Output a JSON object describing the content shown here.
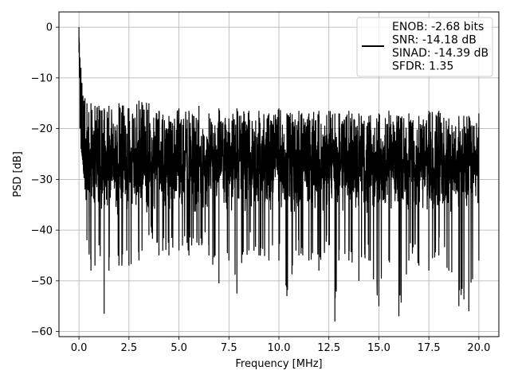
{
  "chart_data": {
    "type": "line",
    "xlabel": "Frequency [MHz]",
    "ylabel": "PSD [dB]",
    "xlim": [
      -1.0,
      21.0
    ],
    "ylim": [
      -61.0,
      3.0
    ],
    "xticks": [
      0.0,
      2.5,
      5.0,
      7.5,
      10.0,
      12.5,
      15.0,
      17.5,
      20.0
    ],
    "xtick_labels": [
      "0.0",
      "2.5",
      "5.0",
      "7.5",
      "10.0",
      "12.5",
      "15.0",
      "17.5",
      "20.0"
    ],
    "yticks": [
      0,
      -10,
      -20,
      -30,
      -40,
      -50,
      -60
    ],
    "ytick_labels": [
      "0",
      "−10",
      "−20",
      "−30",
      "−40",
      "−50",
      "−60"
    ],
    "grid": true,
    "legend_position": "top-right",
    "legend_entries": [
      "ENOB: -2.68 bits",
      "SNR: -14.18 dB",
      "SINAD: -14.39 dB",
      "SFDR: 1.35"
    ],
    "series": [
      {
        "color": "#000000",
        "x": [
          0.0,
          0.02,
          0.05,
          0.1,
          0.15,
          0.2,
          0.3,
          0.4,
          0.6,
          0.8,
          1.0,
          1.26,
          1.5,
          2.0,
          2.5,
          3.0,
          3.5,
          4.0,
          4.5,
          5.0,
          5.5,
          6.0,
          6.5,
          7.0,
          7.5,
          7.9,
          8.5,
          9.0,
          9.5,
          10.0,
          10.4,
          11.0,
          11.5,
          12.0,
          12.5,
          12.8,
          13.0,
          13.5,
          14.0,
          14.5,
          15.0,
          15.5,
          16.0,
          16.5,
          17.0,
          17.5,
          18.0,
          18.5,
          19.0,
          19.5,
          20.0
        ],
        "upper": [
          0.0,
          -3.0,
          -6.0,
          -8.0,
          -11.0,
          -13.5,
          -14.0,
          -15.0,
          -15.0,
          -15.5,
          -15.5,
          -16.0,
          -15.5,
          -15.0,
          -16.0,
          -14.5,
          -15.0,
          -16.5,
          -17.5,
          -16.0,
          -16.5,
          -15.5,
          -17.0,
          -16.0,
          -18.0,
          -16.0,
          -16.5,
          -16.5,
          -17.0,
          -16.0,
          -17.0,
          -16.5,
          -17.0,
          -16.5,
          -16.5,
          -17.0,
          -17.0,
          -16.5,
          -17.0,
          -17.5,
          -17.0,
          -16.5,
          -17.5,
          -17.0,
          -17.5,
          -16.5,
          -16.5,
          -18.0,
          -17.5,
          -17.5,
          -17.0
        ],
        "lower": [
          -5.0,
          -10.0,
          -20.0,
          -24.0,
          -25.0,
          -27.0,
          -32.0,
          -42.0,
          -48.0,
          -47.0,
          -43.0,
          -56.5,
          -48.0,
          -47.0,
          -47.0,
          -46.0,
          -41.0,
          -45.0,
          -45.0,
          -44.0,
          -45.0,
          -43.0,
          -45.0,
          -50.5,
          -46.0,
          -52.5,
          -44.0,
          -45.0,
          -46.0,
          -46.0,
          -53.0,
          -45.0,
          -46.0,
          -48.0,
          -43.0,
          -58.0,
          -46.0,
          -46.0,
          -50.0,
          -46.0,
          -55.0,
          -46.0,
          -57.0,
          -46.0,
          -47.0,
          -48.0,
          -45.0,
          -48.0,
          -55.0,
          -56.0,
          -46.0
        ],
        "typical_range": [
          -33.0,
          -21.0
        ]
      }
    ]
  }
}
